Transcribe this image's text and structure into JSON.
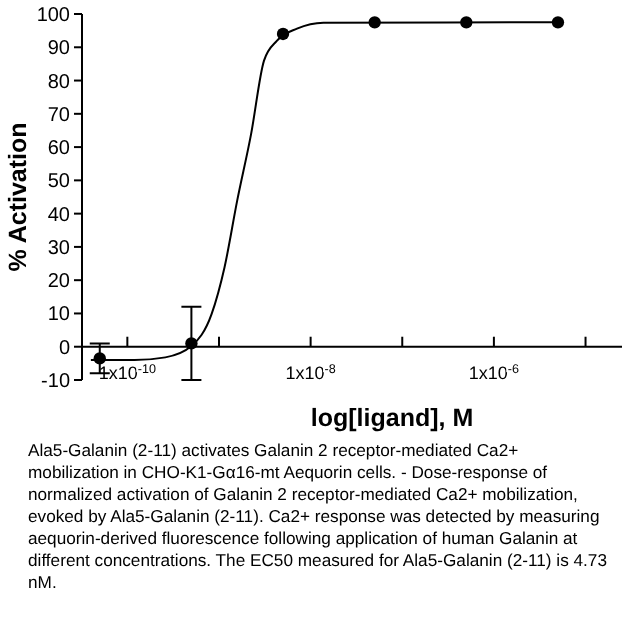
{
  "chart_data": {
    "type": "scatter",
    "xlabel": "log[ligand], M",
    "ylabel": "% Activation",
    "log": "x",
    "grid": false,
    "marker": "circle",
    "xlim": [
      3.2e-11,
      2.5e-05
    ],
    "xticks": [
      {
        "value": 1e-10,
        "label": "1x10$^{-10}$"
      },
      {
        "value": 1e-09,
        "label": null
      },
      {
        "value": 1e-08,
        "label": "1x10$^{-8}$"
      },
      {
        "value": 1e-07,
        "label": null
      },
      {
        "value": 1e-06,
        "label": "1x10$^{-6}$"
      },
      {
        "value": 1e-05,
        "label": null
      }
    ],
    "ylim": [
      -10,
      100
    ],
    "yticks": [
      -10,
      0,
      10,
      20,
      30,
      40,
      50,
      60,
      70,
      80,
      90,
      100
    ],
    "series": [
      {
        "color": "#000000",
        "x": [
          5e-11,
          5e-10,
          5e-09,
          5e-08,
          5e-07,
          5e-06
        ],
        "values": [
          -3.5,
          1,
          94,
          97.5,
          97.5,
          97.5
        ],
        "errors": [
          4.5,
          11,
          null,
          null,
          null,
          null
        ]
      },
      {
        "type": "line",
        "color": "#000000",
        "marker": "none",
        "x": [
          4e-11,
          1.2e-10,
          2.6e-10,
          5e-10,
          8.3e-10,
          1.15e-09,
          1.58e-09,
          2.24e-09,
          3.1e-09,
          4.3e-09,
          7.1e-09,
          1.38e-08,
          5e-06
        ],
        "values": [
          -4,
          -4,
          -3.2,
          0.2,
          9.8,
          23.9,
          43.9,
          63.9,
          86,
          92,
          95.6,
          97.4,
          97.5
        ]
      }
    ],
    "annotations": [
      "Ala5-Galanin (2-11) activates Galanin 2 receptor-mediated Ca2+ mobilization in CHO-K1-Gα16-mt Aequorin cells. - Dose-response of normalized activation of Galanin 2 receptor-mediated Ca2+ mobilization, evoked by Ala5-Galanin (2-11). Ca2+ response was detected by measuring aequorin-derived fluorescence following application of human Galanin at different concentrations. The EC50 measured for Ala5-Galanin (2-11) is 4.73 nM."
    ]
  }
}
